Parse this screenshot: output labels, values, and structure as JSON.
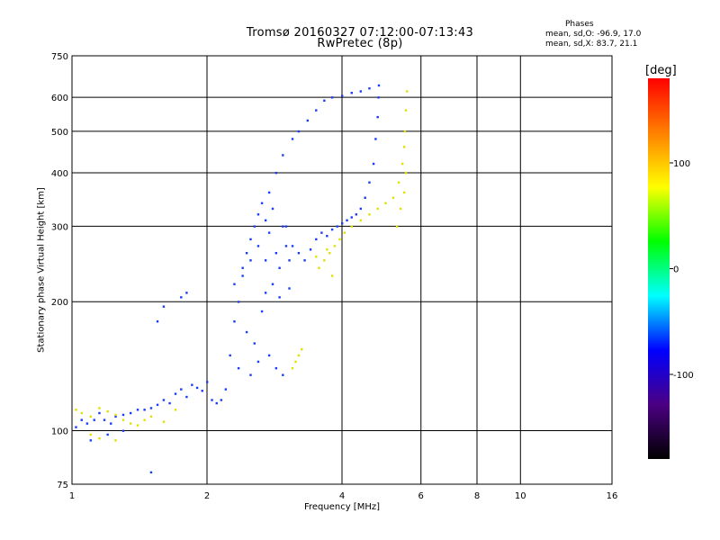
{
  "title": "Tromsø 20160327 07:12:00-07:13:43",
  "subtitle": "RwPretec (8p)",
  "phases": {
    "heading": "Phases",
    "o_mode": "mean, sd,O: -96.9, 17.0",
    "x_mode": "mean, sd,X:  83.7, 21.1"
  },
  "chart_data": {
    "type": "scatter",
    "xlabel": "Frequency [MHz]",
    "ylabel": "Stationary phase Virtual Height [km]",
    "x_scale": "log",
    "y_scale": "log",
    "xlim": [
      1,
      16
    ],
    "ylim": [
      75,
      750
    ],
    "x_ticks": [
      "1",
      "2",
      "4",
      "6",
      "8",
      "10",
      "16"
    ],
    "y_ticks": [
      "75",
      "100",
      "200",
      "300",
      "400",
      "500",
      "600",
      "750"
    ],
    "grid": true,
    "colorbar": {
      "unit": "deg",
      "range": [
        -180,
        180
      ],
      "ticks": [
        "100",
        "0",
        "-100"
      ],
      "colormap": [
        "#000000",
        "#4b0082",
        "#0000ff",
        "#00ffff",
        "#00ff00",
        "#ffff00",
        "#ff8000",
        "#ff0000"
      ]
    },
    "series": [
      {
        "mode": "O",
        "phase_deg": -97,
        "color": "#1a3cf5",
        "points": [
          [
            1.02,
            102
          ],
          [
            1.05,
            106
          ],
          [
            1.08,
            104
          ],
          [
            1.12,
            106
          ],
          [
            1.15,
            110
          ],
          [
            1.18,
            106
          ],
          [
            1.22,
            104
          ],
          [
            1.25,
            108
          ],
          [
            1.3,
            109
          ],
          [
            1.35,
            110
          ],
          [
            1.4,
            112
          ],
          [
            1.45,
            112
          ],
          [
            1.5,
            113
          ],
          [
            1.55,
            115
          ],
          [
            1.6,
            118
          ],
          [
            1.65,
            116
          ],
          [
            1.7,
            122
          ],
          [
            1.75,
            125
          ],
          [
            1.8,
            120
          ],
          [
            1.85,
            128
          ],
          [
            1.9,
            126
          ],
          [
            1.95,
            124
          ],
          [
            2.0,
            130
          ],
          [
            2.05,
            118
          ],
          [
            2.1,
            116
          ],
          [
            2.15,
            118
          ],
          [
            2.2,
            125
          ],
          [
            2.25,
            150
          ],
          [
            2.3,
            180
          ],
          [
            2.35,
            200
          ],
          [
            2.4,
            230
          ],
          [
            2.45,
            260
          ],
          [
            2.5,
            280
          ],
          [
            2.55,
            300
          ],
          [
            2.6,
            320
          ],
          [
            2.65,
            340
          ],
          [
            2.7,
            310
          ],
          [
            2.75,
            290
          ],
          [
            2.8,
            330
          ],
          [
            2.85,
            260
          ],
          [
            2.9,
            240
          ],
          [
            2.95,
            300
          ],
          [
            3.0,
            270
          ],
          [
            3.05,
            250
          ],
          [
            2.3,
            220
          ],
          [
            2.4,
            240
          ],
          [
            2.5,
            250
          ],
          [
            2.6,
            270
          ],
          [
            2.7,
            250
          ],
          [
            2.8,
            220
          ],
          [
            2.45,
            170
          ],
          [
            2.55,
            160
          ],
          [
            2.65,
            190
          ],
          [
            2.75,
            150
          ],
          [
            2.85,
            140
          ],
          [
            2.95,
            135
          ],
          [
            2.35,
            140
          ],
          [
            2.5,
            135
          ],
          [
            2.6,
            145
          ],
          [
            2.7,
            210
          ],
          [
            2.75,
            360
          ],
          [
            2.85,
            400
          ],
          [
            2.95,
            440
          ],
          [
            3.1,
            480
          ],
          [
            3.2,
            500
          ],
          [
            3.35,
            530
          ],
          [
            3.5,
            560
          ],
          [
            3.65,
            590
          ],
          [
            3.8,
            600
          ],
          [
            4.0,
            605
          ],
          [
            4.2,
            615
          ],
          [
            4.4,
            620
          ],
          [
            4.6,
            630
          ],
          [
            3.0,
            300
          ],
          [
            3.1,
            270
          ],
          [
            3.2,
            260
          ],
          [
            3.3,
            250
          ],
          [
            3.4,
            265
          ],
          [
            3.5,
            280
          ],
          [
            3.6,
            290
          ],
          [
            3.7,
            285
          ],
          [
            3.8,
            295
          ],
          [
            3.9,
            300
          ],
          [
            4.0,
            305
          ],
          [
            4.1,
            310
          ],
          [
            4.2,
            315
          ],
          [
            4.3,
            320
          ],
          [
            4.4,
            330
          ],
          [
            4.5,
            350
          ],
          [
            4.6,
            380
          ],
          [
            4.7,
            420
          ],
          [
            4.75,
            480
          ],
          [
            4.8,
            540
          ],
          [
            4.82,
            600
          ],
          [
            4.83,
            640
          ],
          [
            1.55,
            180
          ],
          [
            1.6,
            195
          ],
          [
            1.75,
            205
          ],
          [
            1.8,
            210
          ],
          [
            1.3,
            100
          ],
          [
            1.2,
            98
          ],
          [
            1.1,
            95
          ],
          [
            1.5,
            80
          ],
          [
            2.9,
            205
          ],
          [
            3.05,
            215
          ]
        ]
      },
      {
        "mode": "X",
        "phase_deg": 84,
        "color": "#e0e000",
        "points": [
          [
            1.02,
            112
          ],
          [
            1.05,
            110
          ],
          [
            1.1,
            108
          ],
          [
            1.15,
            113
          ],
          [
            1.2,
            111
          ],
          [
            1.25,
            109
          ],
          [
            1.3,
            106
          ],
          [
            1.35,
            104
          ],
          [
            1.4,
            103
          ],
          [
            1.45,
            106
          ],
          [
            1.5,
            108
          ],
          [
            1.6,
            105
          ],
          [
            1.7,
            112
          ],
          [
            1.1,
            98
          ],
          [
            1.15,
            96
          ],
          [
            1.25,
            95
          ],
          [
            3.1,
            140
          ],
          [
            3.15,
            145
          ],
          [
            3.2,
            150
          ],
          [
            3.25,
            155
          ],
          [
            3.55,
            240
          ],
          [
            3.65,
            250
          ],
          [
            3.75,
            260
          ],
          [
            3.85,
            270
          ],
          [
            3.95,
            280
          ],
          [
            4.05,
            290
          ],
          [
            4.2,
            300
          ],
          [
            4.4,
            310
          ],
          [
            4.6,
            320
          ],
          [
            4.8,
            330
          ],
          [
            5.0,
            340
          ],
          [
            5.2,
            350
          ],
          [
            5.35,
            380
          ],
          [
            5.45,
            420
          ],
          [
            5.5,
            460
          ],
          [
            5.52,
            500
          ],
          [
            5.55,
            560
          ],
          [
            5.58,
            620
          ],
          [
            5.3,
            300
          ],
          [
            5.4,
            330
          ],
          [
            5.5,
            360
          ],
          [
            5.55,
            400
          ],
          [
            3.5,
            255
          ],
          [
            3.7,
            265
          ],
          [
            3.8,
            230
          ]
        ]
      }
    ]
  }
}
